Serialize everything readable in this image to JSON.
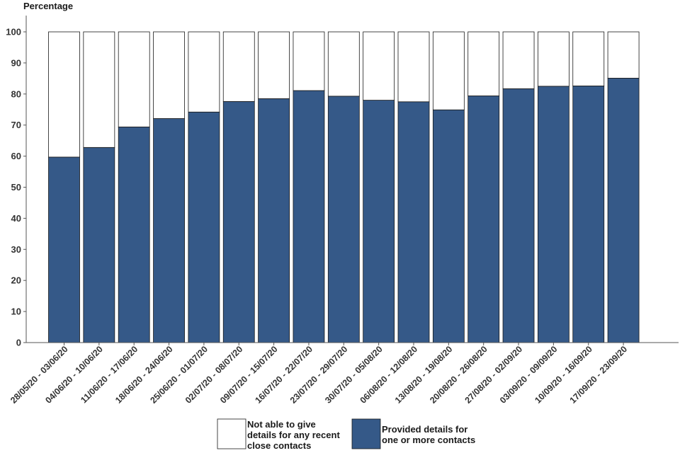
{
  "chart_data": {
    "type": "bar",
    "stacked": true,
    "ylabel": "Percentage",
    "xlabel": "",
    "ylim": [
      0,
      100
    ],
    "yticks": [
      0,
      10,
      20,
      30,
      40,
      50,
      60,
      70,
      80,
      90,
      100
    ],
    "grid": false,
    "legend_position": "bottom",
    "categories": [
      "28/05/20 - 03/06/20",
      "04/06/20 - 10/06/20",
      "11/06/20 - 17/06/20",
      "18/06/20 - 24/06/20",
      "25/06/20 - 01/07/20",
      "02/07/20 - 08/07/20",
      "09/07/20 - 15/07/20",
      "16/07/20 - 22/07/20",
      "23/07/20 - 29/07/20",
      "30/07/20 - 05/08/20",
      "06/08/20 - 12/08/20",
      "13/08/20 - 19/08/20",
      "20/08/20 - 26/08/20",
      "27/08/20 - 02/09/20",
      "03/09/20 - 09/09/20",
      "10/09/20 - 16/09/20",
      "17/09/20 - 23/09/20"
    ],
    "series": [
      {
        "name": "Provided details for one or more contacts",
        "legend_lines": [
          "Provided details for",
          " one or more contacts"
        ],
        "color": "#355988",
        "values": [
          59.7,
          62.8,
          69.4,
          72.1,
          74.2,
          77.6,
          78.5,
          81.1,
          79.3,
          78.0,
          77.5,
          74.9,
          79.4,
          81.7,
          82.5,
          82.6,
          85.1
        ]
      },
      {
        "name": "Not able to give details for any recent close contacts",
        "legend_lines": [
          "Not able to give",
          " details for any recent",
          " close contacts"
        ],
        "color": "#ffffff",
        "values": [
          40.3,
          37.2,
          30.6,
          27.9,
          25.8,
          22.4,
          21.5,
          18.9,
          20.7,
          22.0,
          22.5,
          25.1,
          20.6,
          18.3,
          17.5,
          17.4,
          14.9
        ]
      }
    ]
  }
}
